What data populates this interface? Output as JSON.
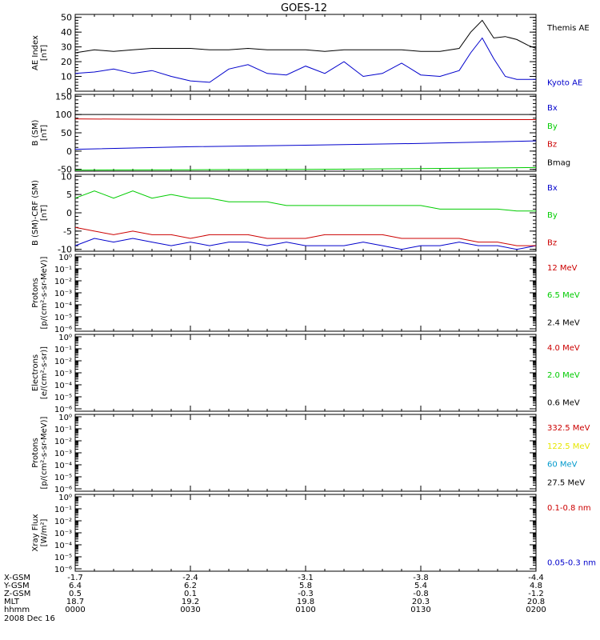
{
  "title": "GOES-12",
  "date_label": "2008 Dec 16",
  "chart_data": [
    {
      "type": "line",
      "ylabel": [
        "AE Index",
        "[nT]"
      ],
      "ylim": [
        0,
        52
      ],
      "yscale": "linear",
      "yticks": [
        0,
        10,
        20,
        30,
        40,
        50
      ],
      "ytick_labels": [
        "0",
        "10",
        "20",
        "30",
        "40",
        "50"
      ],
      "x_minutes": [
        0,
        5,
        10,
        15,
        20,
        25,
        30,
        35,
        40,
        45,
        50,
        55,
        60,
        65,
        70,
        75,
        80,
        85,
        90,
        95,
        100,
        103,
        106,
        109,
        112,
        115,
        118,
        120
      ],
      "series": [
        {
          "name": "Themis AE",
          "color": "#000000",
          "values": [
            26,
            28,
            27,
            28,
            29,
            29,
            29,
            28,
            28,
            29,
            28,
            28,
            28,
            27,
            28,
            28,
            28,
            28,
            27,
            27,
            29,
            40,
            48,
            36,
            37,
            35,
            31,
            29
          ]
        },
        {
          "name": "Kyoto AE",
          "color": "#0000cc",
          "values": [
            12,
            13,
            15,
            12,
            14,
            10,
            7,
            6,
            15,
            18,
            12,
            11,
            17,
            12,
            20,
            10,
            12,
            19,
            11,
            10,
            14,
            26,
            36,
            22,
            10,
            8,
            8,
            8
          ]
        }
      ]
    },
    {
      "type": "line",
      "ylabel": [
        "B (SM)",
        "[nT]"
      ],
      "ylim": [
        -55,
        155
      ],
      "yscale": "linear",
      "yticks": [
        -50,
        0,
        50,
        100,
        150
      ],
      "ytick_labels": [
        "-50",
        "0",
        "50",
        "100",
        "150"
      ],
      "x_minutes": [
        0,
        30,
        60,
        90,
        120
      ],
      "series": [
        {
          "name": "Bx",
          "color": "#0000cc",
          "values": [
            5,
            12,
            16,
            21,
            28
          ]
        },
        {
          "name": "By",
          "color": "#00cc00",
          "values": [
            -52,
            -51,
            -50,
            -48,
            -45
          ]
        },
        {
          "name": "Bz",
          "color": "#cc0000",
          "values": [
            88,
            86,
            86,
            86,
            86
          ]
        },
        {
          "name": "Bmag",
          "color": "#000000",
          "values": [
            100,
            100,
            100,
            100,
            100
          ]
        }
      ]
    },
    {
      "type": "line",
      "ylabel": [
        "B (SM)-CRF (SM)",
        "[nT]"
      ],
      "ylim": [
        -10.5,
        10.5
      ],
      "yscale": "linear",
      "yticks": [
        -10,
        -5,
        0,
        5,
        10
      ],
      "ytick_labels": [
        "-10",
        "-5",
        "0",
        "5",
        "10"
      ],
      "x_minutes": [
        0,
        5,
        10,
        15,
        20,
        25,
        30,
        35,
        40,
        45,
        50,
        55,
        60,
        65,
        70,
        75,
        80,
        85,
        90,
        95,
        100,
        105,
        110,
        115,
        120
      ],
      "series": [
        {
          "name": "Bx",
          "color": "#0000cc",
          "values": [
            -9,
            -7,
            -8,
            -7,
            -8,
            -9,
            -8,
            -9,
            -8,
            -8,
            -9,
            -8,
            -9,
            -9,
            -9,
            -8,
            -9,
            -10,
            -9,
            -9,
            -8,
            -9,
            -9,
            -10,
            -9
          ]
        },
        {
          "name": "By",
          "color": "#00cc00",
          "values": [
            4,
            6,
            4,
            6,
            4,
            5,
            4,
            4,
            3,
            3,
            3,
            2,
            2,
            2,
            2,
            2,
            2,
            2,
            2,
            1,
            1,
            1,
            1,
            0.5,
            0.5
          ]
        },
        {
          "name": "Bz",
          "color": "#cc0000",
          "values": [
            -4,
            -5,
            -6,
            -5,
            -6,
            -6,
            -7,
            -6,
            -6,
            -6,
            -7,
            -7,
            -7,
            -6,
            -6,
            -6,
            -6,
            -7,
            -7,
            -7,
            -7,
            -8,
            -8,
            -9,
            -9
          ]
        }
      ]
    },
    {
      "type": "line",
      "ylabel": [
        "Protons",
        "[p/(cm²-s-sr-MeV)]"
      ],
      "yscale": "log",
      "ytick_labels": [
        "10⁰",
        "10⁻¹",
        "10⁻²",
        "10⁻³",
        "10⁻⁴",
        "10⁻⁵",
        "10⁻⁶"
      ],
      "series": [
        {
          "name": "12 MeV",
          "color": "#cc0000"
        },
        {
          "name": "6.5 MeV",
          "color": "#00cc00"
        },
        {
          "name": "2.4 MeV",
          "color": "#000000"
        }
      ]
    },
    {
      "type": "line",
      "ylabel": [
        "Electrons",
        "[e/(cm²-s-sr)]"
      ],
      "yscale": "log",
      "ytick_labels": [
        "10⁰",
        "10⁻¹",
        "10⁻²",
        "10⁻³",
        "10⁻⁴",
        "10⁻⁵",
        "10⁻⁶"
      ],
      "series": [
        {
          "name": "4.0 MeV",
          "color": "#cc0000"
        },
        {
          "name": "2.0 MeV",
          "color": "#00cc00"
        },
        {
          "name": "0.6 MeV",
          "color": "#000000"
        }
      ]
    },
    {
      "type": "line",
      "ylabel": [
        "Protons",
        "[p/(cm²-s-sr-MeV)]"
      ],
      "yscale": "log",
      "ytick_labels": [
        "10⁰",
        "10⁻¹",
        "10⁻²",
        "10⁻³",
        "10⁻⁴",
        "10⁻⁵",
        "10⁻⁶"
      ],
      "series": [
        {
          "name": "332.5 MeV",
          "color": "#cc0000"
        },
        {
          "name": "122.5 MeV",
          "color": "#e6e600"
        },
        {
          "name": "60 MeV",
          "color": "#0099cc"
        },
        {
          "name": "27.5 MeV",
          "color": "#000000"
        }
      ]
    },
    {
      "type": "line",
      "ylabel": [
        "Xray Flux",
        "[W/m²]"
      ],
      "yscale": "log",
      "ytick_labels": [
        "10⁰",
        "10⁻¹",
        "10⁻²",
        "10⁻³",
        "10⁻⁴",
        "10⁻⁵",
        "10⁻⁶"
      ],
      "series": [
        {
          "name": "0.1-0.8 nm",
          "color": "#cc0000"
        },
        {
          "name": "0.05-0.3 nm",
          "color": "#0000cc"
        }
      ]
    }
  ],
  "x_axis": {
    "row_labels": [
      "X-GSM",
      "Y-GSM",
      "Z-GSM",
      "MLT",
      "hhmm"
    ],
    "columns": [
      {
        "values": [
          "-1.7",
          "6.4",
          "0.5",
          "18.7",
          "0000"
        ]
      },
      {
        "values": [
          "-2.4",
          "6.2",
          "0.1",
          "19.2",
          "0030"
        ]
      },
      {
        "values": [
          "-3.1",
          "5.8",
          "-0.3",
          "19.8",
          "0100"
        ]
      },
      {
        "values": [
          "-3.8",
          "5.4",
          "-0.8",
          "20.3",
          "0130"
        ]
      },
      {
        "values": [
          "-4.4",
          "4.8",
          "-1.2",
          "20.8",
          "0200"
        ]
      }
    ],
    "minutes": [
      0,
      30,
      60,
      90,
      120
    ]
  }
}
